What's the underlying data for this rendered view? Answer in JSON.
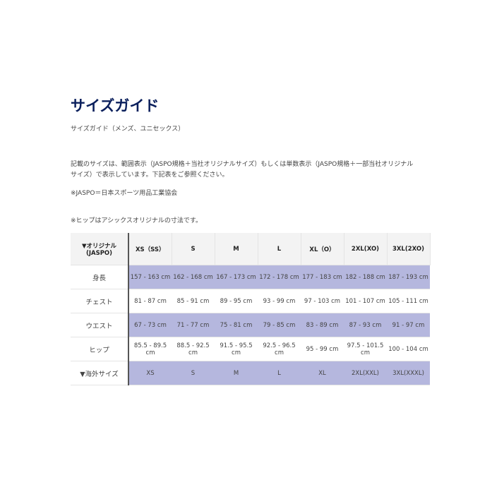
{
  "title": "サイズガイド",
  "subtitle": "サイズガイド（メンズ、ユニセックス）",
  "description": "記載のサイズは、範囲表示（JASPO規格＋当社オリジナルサイズ）もしくは単数表示（JASPO規格＋一部当社オリジナルサイズ）で表示しています。下記表をご参照ください。",
  "note_jaspo": "※JASPO＝日本スポーツ用品工業協会",
  "note_hip": "※ヒップはアシックスオリジナルの寸法です。",
  "colors": {
    "title": "#0a1f5c",
    "highlight_row": "#b5b7de",
    "header_bg": "#f3f3f3"
  },
  "table": {
    "header": {
      "label": "▼オリジナル(JASPO)",
      "sizes": [
        "XS（SS）",
        "S",
        "M",
        "L",
        "XL（O）",
        "2XL(XO)",
        "3XL(2XO)"
      ]
    },
    "rows": [
      {
        "label": "身長",
        "values": [
          "157 - 163 cm",
          "162 - 168 cm",
          "167 - 173 cm",
          "172 - 178 cm",
          "177 - 183 cm",
          "182 - 188 cm",
          "187 - 193 cm"
        ]
      },
      {
        "label": "チェスト",
        "values": [
          "81 - 87 cm",
          "85 - 91 cm",
          "89 - 95 cm",
          "93 - 99 cm",
          "97 - 103 cm",
          "101 - 107 cm",
          "105 - 111 cm"
        ]
      },
      {
        "label": "ウエスト",
        "values": [
          "67 - 73 cm",
          "71 - 77 cm",
          "75 - 81 cm",
          "79 - 85 cm",
          "83 - 89 cm",
          "87 - 93 cm",
          "91 - 97 cm"
        ]
      },
      {
        "label": "ヒップ",
        "values": [
          "85.5 - 89.5 cm",
          "88.5 - 92.5 cm",
          "91.5 - 95.5 cm",
          "92.5 - 96.5 cm",
          "95 - 99 cm",
          "97.5 - 101.5 cm",
          "100 - 104 cm"
        ]
      },
      {
        "label": "▼海外サイズ",
        "values": [
          "XS",
          "S",
          "M",
          "L",
          "XL",
          "2XL(XXL)",
          "3XL(XXXL)"
        ]
      }
    ]
  }
}
